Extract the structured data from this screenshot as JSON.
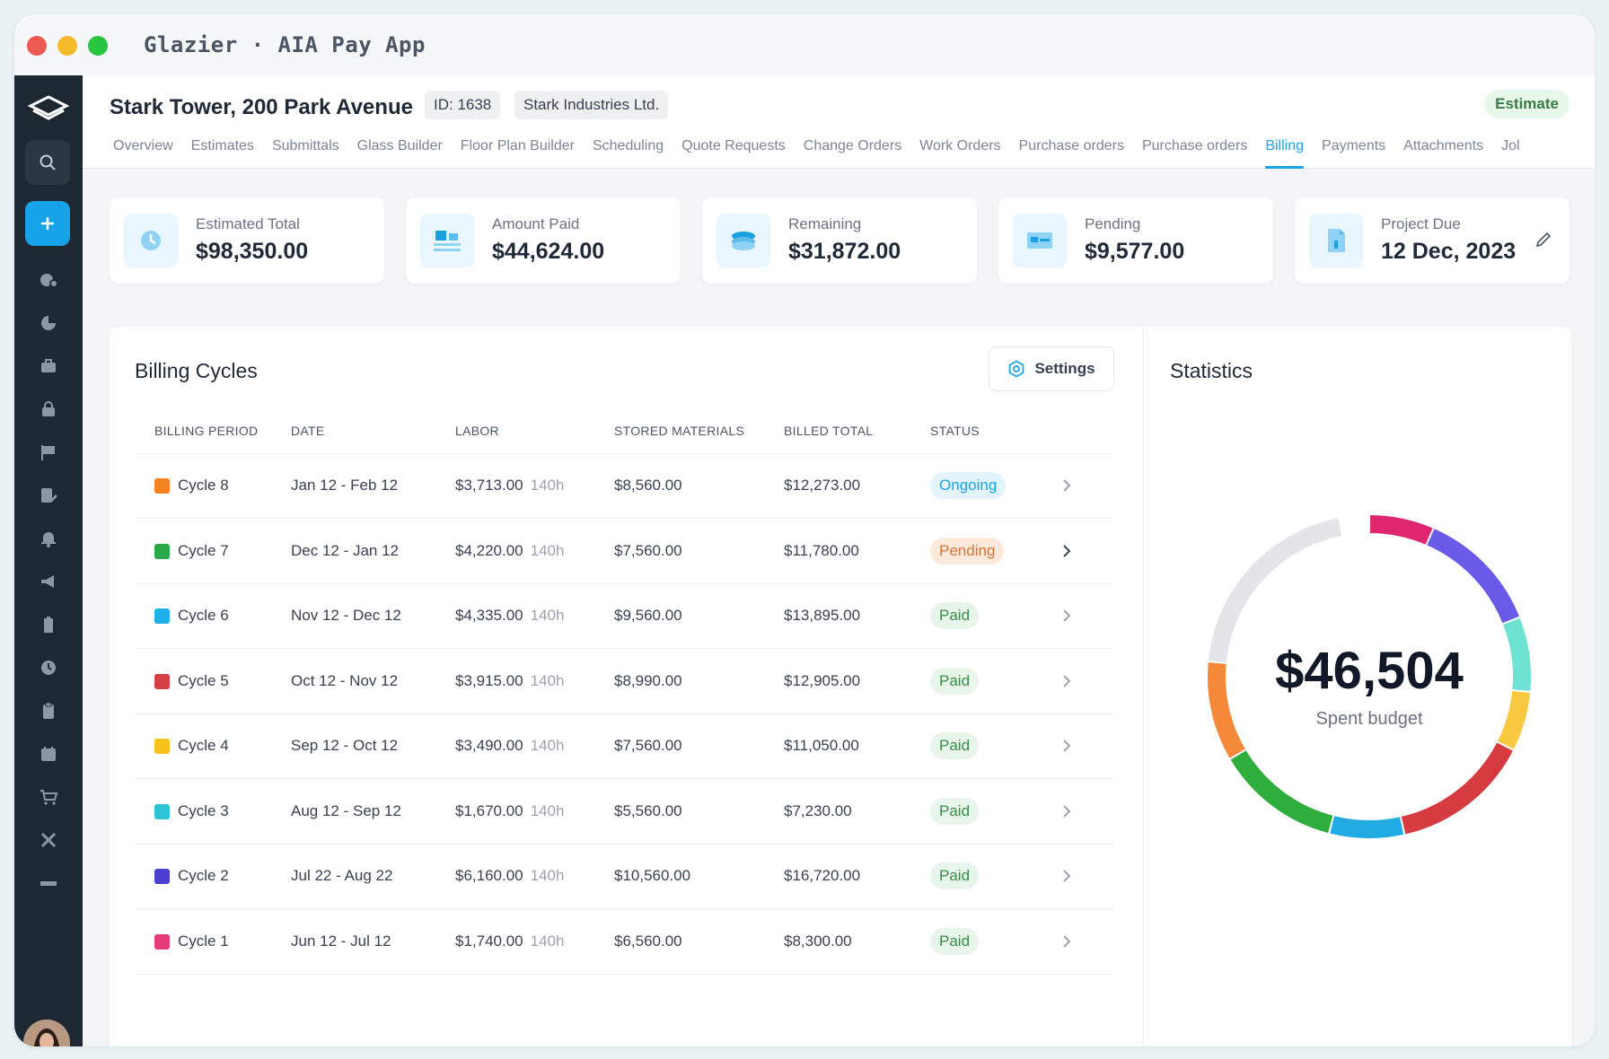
{
  "window": {
    "title": "Glazier · AIA Pay App"
  },
  "project": {
    "name": "Stark Tower, 200 Park Avenue",
    "id_label": "ID: 1638",
    "company": "Stark Industries Ltd.",
    "type_badge": "Estimate"
  },
  "tabs": [
    {
      "label": "Overview"
    },
    {
      "label": "Estimates"
    },
    {
      "label": "Submittals"
    },
    {
      "label": "Glass Builder"
    },
    {
      "label": "Floor Plan Builder"
    },
    {
      "label": "Scheduling"
    },
    {
      "label": "Quote Requests"
    },
    {
      "label": "Change Orders"
    },
    {
      "label": "Work Orders"
    },
    {
      "label": "Purchase orders"
    },
    {
      "label": "Purchase orders"
    },
    {
      "label": "Billing",
      "active": true
    },
    {
      "label": "Payments"
    },
    {
      "label": "Attachments"
    },
    {
      "label": "Jol"
    }
  ],
  "summary_cards": [
    {
      "label": "Estimated Total",
      "value": "$98,350.00",
      "icon": "clock-icon"
    },
    {
      "label": "Amount Paid",
      "value": "$44,624.00",
      "icon": "pallet-icon"
    },
    {
      "label": "Remaining",
      "value": "$31,872.00",
      "icon": "coins-icon"
    },
    {
      "label": "Pending",
      "value": "$9,577.00",
      "icon": "card-icon"
    },
    {
      "label": "Project Due",
      "value": "12 Dec, 2023",
      "icon": "document-icon"
    }
  ],
  "billing": {
    "title": "Billing Cycles",
    "settings_label": "Settings",
    "columns": [
      "BILLING PERIOD",
      "DATE",
      "LABOR",
      "STORED MATERIALS",
      "BILLED TOTAL",
      "STATUS"
    ],
    "rows": [
      {
        "cycle": "Cycle 8",
        "color": "#f58220",
        "date": "Jan 12 - Feb 12",
        "labor": "$3,713.00",
        "hours": "140h",
        "stored": "$8,560.00",
        "billed": "$12,273.00",
        "status": "Ongoing"
      },
      {
        "cycle": "Cycle 7",
        "color": "#2aa84a",
        "date": "Dec 12 - Jan 12",
        "labor": "$4,220.00",
        "hours": "140h",
        "stored": "$7,560.00",
        "billed": "$11,780.00",
        "status": "Pending"
      },
      {
        "cycle": "Cycle 6",
        "color": "#1fb0ea",
        "date": "Nov 12 - Dec 12",
        "labor": "$4,335.00",
        "hours": "140h",
        "stored": "$9,560.00",
        "billed": "$13,895.00",
        "status": "Paid"
      },
      {
        "cycle": "Cycle 5",
        "color": "#d64045",
        "date": "Oct 12 - Nov 12",
        "labor": "$3,915.00",
        "hours": "140h",
        "stored": "$8,990.00",
        "billed": "$12,905.00",
        "status": "Paid"
      },
      {
        "cycle": "Cycle 4",
        "color": "#f8c21c",
        "date": "Sep 12 - Oct 12",
        "labor": "$3,490.00",
        "hours": "140h",
        "stored": "$7,560.00",
        "billed": "$11,050.00",
        "status": "Paid"
      },
      {
        "cycle": "Cycle 3",
        "color": "#2ec4d6",
        "date": "Aug 12 - Sep 12",
        "labor": "$1,670.00",
        "hours": "140h",
        "stored": "$5,560.00",
        "billed": "$7,230.00",
        "status": "Paid"
      },
      {
        "cycle": "Cycle 2",
        "color": "#4a3fd1",
        "date": "Jul 22 - Aug 22",
        "labor": "$6,160.00",
        "hours": "140h",
        "stored": "$10,560.00",
        "billed": "$16,720.00",
        "status": "Paid"
      },
      {
        "cycle": "Cycle 1",
        "color": "#e63b7a",
        "date": "Jun 12 - Jul 12",
        "labor": "$1,740.00",
        "hours": "140h",
        "stored": "$6,560.00",
        "billed": "$8,300.00",
        "status": "Paid"
      }
    ]
  },
  "statistics": {
    "title": "Statistics",
    "center_value": "$46,504",
    "center_label": "Spent budget",
    "segments": [
      {
        "color": "#e0266f",
        "share": 0.065
      },
      {
        "color": "#6a5ae8",
        "share": 0.125
      },
      {
        "color": "#6fe3d3",
        "share": 0.075
      },
      {
        "color": "#f8c940",
        "share": 0.06
      },
      {
        "color": "#d63c3f",
        "share": 0.14
      },
      {
        "color": "#22abe3",
        "share": 0.075
      },
      {
        "color": "#2fae3e",
        "share": 0.125
      },
      {
        "color": "#f5893a",
        "share": 0.1
      },
      {
        "color": "#e3e5e8",
        "share": 0.205
      }
    ]
  }
}
